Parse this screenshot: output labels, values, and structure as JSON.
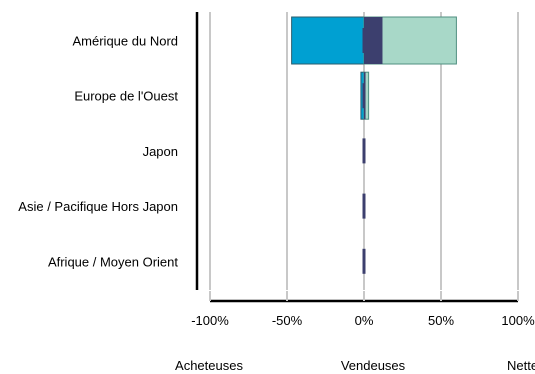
{
  "chart_data": {
    "type": "bar",
    "orientation": "horizontal",
    "stacking": "diverging",
    "categories": [
      "Amérique du Nord",
      "Europe de l'Ouest",
      "Japon",
      "Asie / Pacifique Hors Japon",
      "Afrique / Moyen Orient"
    ],
    "series": [
      {
        "name": "Acheteuses",
        "color": "#00a0d2",
        "values": [
          -47,
          -2,
          0,
          0,
          0
        ]
      },
      {
        "name": "Vendeuses",
        "color": "#3c3f6e",
        "values": [
          12,
          1,
          0,
          0,
          0
        ]
      },
      {
        "name": "Nettes",
        "color": "#a8d8c8",
        "values": [
          60,
          3,
          0,
          0,
          0
        ]
      }
    ],
    "xlim": [
      -100,
      100
    ],
    "ticks": [
      -100,
      -50,
      0,
      50,
      100
    ],
    "tick_labels": [
      "-100%",
      "-50%",
      "0%",
      "50%",
      "100%"
    ],
    "legend_labels": [
      "Acheteuses",
      "Vendeuses",
      "Nettes"
    ],
    "legend_position": "bottom",
    "grid": true
  }
}
